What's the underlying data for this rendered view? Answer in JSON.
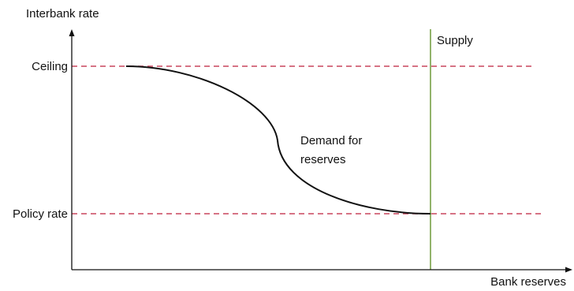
{
  "axes": {
    "y_label": "Interbank rate",
    "x_label": "Bank reserves"
  },
  "levels": {
    "ceiling_label": "Ceiling",
    "policy_label": "Policy rate"
  },
  "curves": {
    "supply_label": "Supply",
    "demand_label_line1": "Demand for",
    "demand_label_line2": "reserves"
  },
  "colors": {
    "axis": "#111111",
    "reference_dashes": "#c8455d",
    "supply": "#6f9a3a",
    "demand": "#111111",
    "text": "#111111"
  }
}
